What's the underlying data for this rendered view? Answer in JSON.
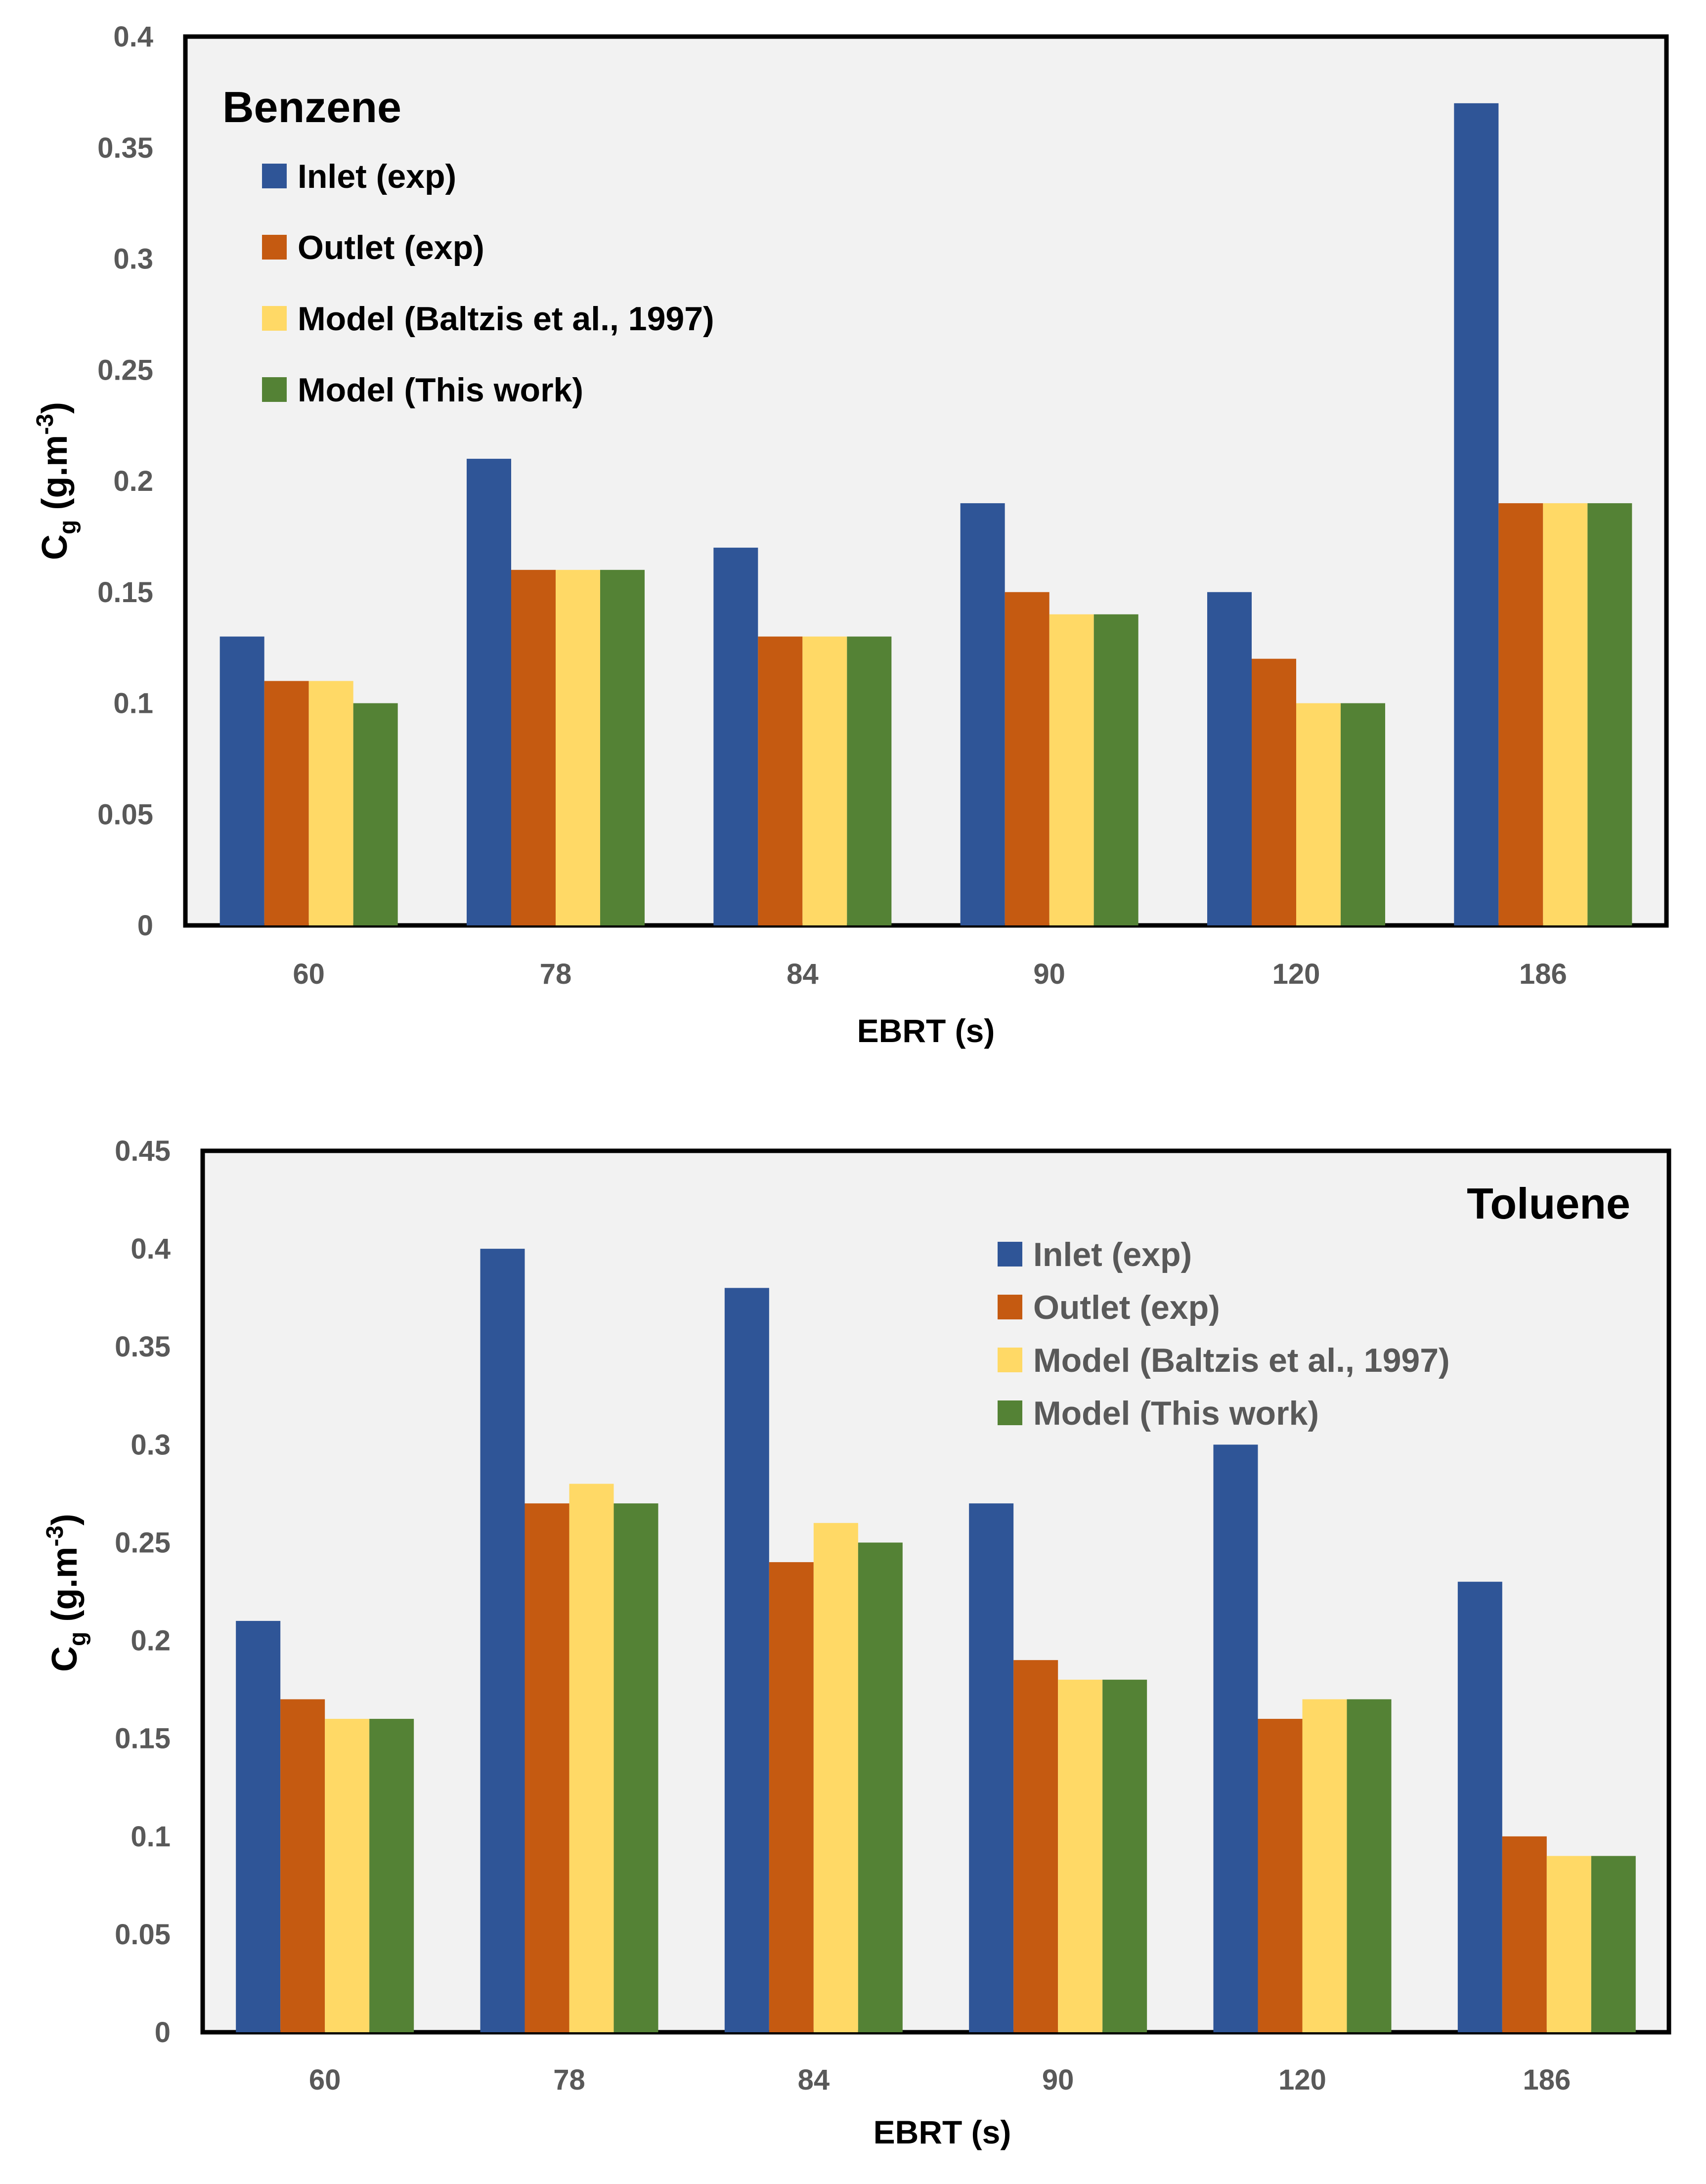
{
  "chart_data": [
    {
      "type": "bar",
      "title": "Benzene",
      "xlabel": "EBRT (s)",
      "ylabel_main": "C",
      "ylabel_sub": "g",
      "ylabel_unit": "(g.m",
      "ylabel_sup": "-3",
      "ylabel_close": ")",
      "categories": [
        "60",
        "78",
        "84",
        "90",
        "120",
        "186"
      ],
      "ylim": [
        0,
        0.4
      ],
      "yticks": [
        "0",
        "0.05",
        "0.1",
        "0.15",
        "0.2",
        "0.25",
        "0.3",
        "0.35",
        "0.4"
      ],
      "legend_position": "top-left",
      "series": [
        {
          "name": "Inlet (exp)",
          "color": "#2F5597",
          "values": [
            0.13,
            0.21,
            0.17,
            0.19,
            0.15,
            0.37
          ]
        },
        {
          "name": "Outlet (exp)",
          "color": "#C55A11",
          "values": [
            0.11,
            0.16,
            0.13,
            0.15,
            0.12,
            0.19
          ]
        },
        {
          "name": "Model (Baltzis et al., 1997)",
          "color": "#FFD966",
          "values": [
            0.11,
            0.16,
            0.13,
            0.14,
            0.1,
            0.19
          ]
        },
        {
          "name": "Model (This work)",
          "color": "#548235",
          "values": [
            0.1,
            0.16,
            0.13,
            0.14,
            0.1,
            0.19
          ]
        }
      ]
    },
    {
      "type": "bar",
      "title": "Toluene",
      "xlabel": "EBRT (s)",
      "ylabel_main": "C",
      "ylabel_sub": "g",
      "ylabel_unit": "(g.m",
      "ylabel_sup": "-3",
      "ylabel_close": ")",
      "categories": [
        "60",
        "78",
        "84",
        "90",
        "120",
        "186"
      ],
      "ylim": [
        0,
        0.45
      ],
      "yticks": [
        "0",
        "0.05",
        "0.1",
        "0.15",
        "0.2",
        "0.25",
        "0.3",
        "0.35",
        "0.4",
        "0.45"
      ],
      "legend_position": "top-right",
      "series": [
        {
          "name": "Inlet (exp)",
          "color": "#2F5597",
          "values": [
            0.21,
            0.4,
            0.38,
            0.27,
            0.3,
            0.23
          ]
        },
        {
          "name": "Outlet (exp)",
          "color": "#C55A11",
          "values": [
            0.17,
            0.27,
            0.24,
            0.19,
            0.16,
            0.1
          ]
        },
        {
          "name": "Model (Baltzis et al., 1997)",
          "color": "#FFD966",
          "values": [
            0.16,
            0.28,
            0.26,
            0.18,
            0.17,
            0.09
          ]
        },
        {
          "name": "Model (This work)",
          "color": "#548235",
          "values": [
            0.16,
            0.27,
            0.25,
            0.18,
            0.17,
            0.09
          ]
        }
      ]
    }
  ]
}
